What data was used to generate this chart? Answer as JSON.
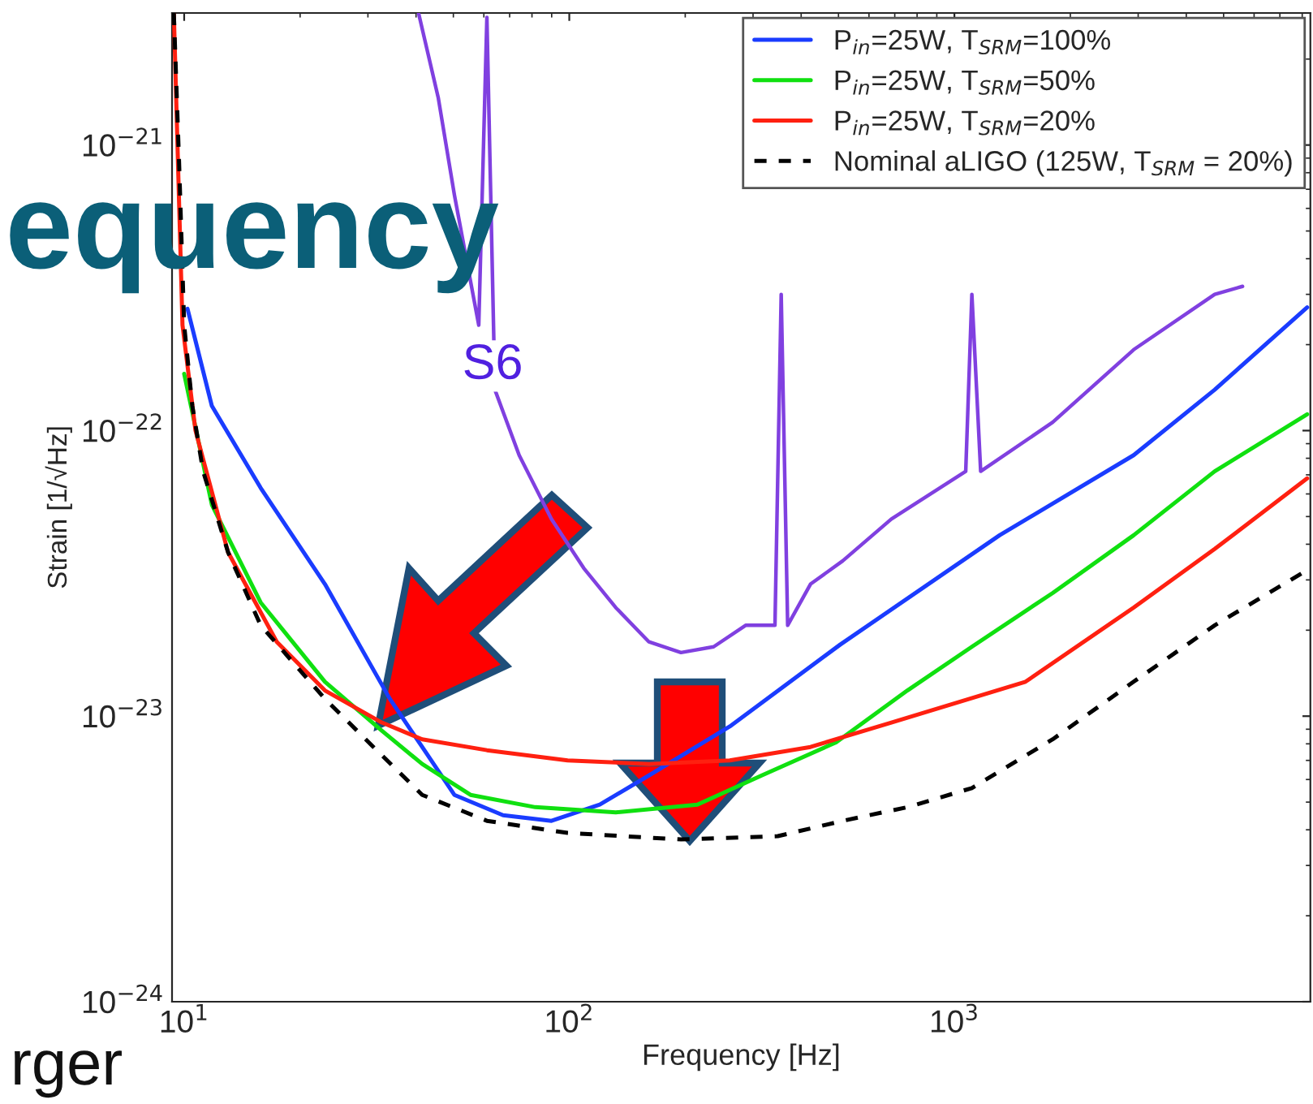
{
  "chart_data": {
    "type": "line",
    "xlabel": "Frequency [Hz]",
    "ylabel": "Strain [1/√Hz]",
    "log": "xy",
    "grid": false,
    "legend": "top right",
    "xlim": [
      9.3,
      8400
    ],
    "ylim": [
      1e-24,
      2.9e-21
    ],
    "xticks": [
      {
        "value": 10,
        "label": "10$^{1}$"
      },
      {
        "value": 100,
        "label": "10$^{2}$"
      },
      {
        "value": 1000,
        "label": "10$^{3}$"
      }
    ],
    "yticks": [
      {
        "value": 1e-24,
        "label": "10$^{−24}$"
      },
      {
        "value": 1e-23,
        "label": "10$^{−23}$"
      },
      {
        "value": 1e-22,
        "label": "10$^{−22}$"
      },
      {
        "value": 1e-21,
        "label": "10$^{−21}$"
      }
    ],
    "annotations": [
      "equency",
      "rger"
    ],
    "series": [
      {
        "name": "P$_{in}$=25W, T$_{SRM}$=100%",
        "color": "#1a3cff",
        "line_style": "solid",
        "x": [
          10.2,
          11.8,
          15.8,
          23.2,
          34.2,
          41.5,
          50.3,
          67.3,
          89.9,
          120,
          161,
          261,
          505,
          1310,
          2920,
          4740,
          8240
        ],
        "values": [
          2.67e-22,
          1.22e-22,
          6.3e-23,
          2.9e-23,
          1.15e-23,
          7.8e-24,
          5.3e-24,
          4.5e-24,
          4.3e-24,
          4.9e-24,
          6.2e-24,
          9.2e-24,
          1.78e-23,
          4.3e-23,
          8.2e-23,
          1.39e-22,
          2.7e-22
        ]
      },
      {
        "name": "P$_{in}$=25W, T$_{SRM}$=50%",
        "color": "#10e010",
        "line_style": "solid",
        "x": [
          10,
          11.8,
          15.8,
          23.2,
          32.6,
          41.5,
          55.4,
          81.6,
          132,
          215,
          316,
          493,
          755,
          1110,
          1800,
          2920,
          4740,
          8240
        ],
        "values": [
          1.58e-22,
          5.5e-23,
          2.5e-23,
          1.32e-23,
          8.9e-24,
          6.8e-24,
          5.3e-24,
          4.8e-24,
          4.6e-24,
          4.9e-24,
          6.2e-24,
          8.1e-24,
          1.23e-23,
          1.75e-23,
          2.7e-23,
          4.3e-23,
          7.2e-23,
          1.14e-22
        ]
      },
      {
        "name": "P$_{in}$=25W, T$_{SRM}$=20%",
        "color": "#ff2010",
        "line_style": "solid",
        "x": [
          9.4,
          9.9,
          10.7,
          13.0,
          17.4,
          23.2,
          32.6,
          41.5,
          61.1,
          99,
          161,
          261,
          423,
          686,
          1530,
          2920,
          4740,
          8240
        ],
        "values": [
          2.9e-21,
          2.34e-22,
          1e-22,
          3.75e-23,
          1.82e-23,
          1.23e-23,
          9.5e-24,
          8.3e-24,
          7.6e-24,
          7e-24,
          6.8e-24,
          7e-24,
          7.8e-24,
          9.5e-24,
          1.32e-23,
          2.4e-23,
          3.85e-23,
          6.8e-23
        ]
      },
      {
        "name": "Nominal aLIGO (125W, T$_{SRM}$ = 20%)",
        "color": "#000000",
        "line_style": "dashed",
        "x": [
          9.4,
          9.7,
          10,
          10.5,
          11.2,
          13.0,
          15.8,
          23.2,
          31.0,
          41.5,
          61.1,
          99,
          195,
          348,
          513,
          755,
          1110,
          1800,
          2920,
          4740,
          8090
        ],
        "values": [
          2.9e-21,
          8.7e-22,
          2.34e-22,
          1.22e-22,
          7.2e-23,
          3.75e-23,
          2.08e-23,
          1.15e-23,
          7.8e-24,
          5.3e-24,
          4.3e-24,
          3.9e-24,
          3.7e-24,
          3.8e-24,
          4.3e-24,
          4.8e-24,
          5.6e-24,
          8.3e-24,
          1.32e-23,
          2.08e-23,
          3.2e-23
        ]
      },
      {
        "name": "S6",
        "color": "#8040e0",
        "line_style": "solid",
        "x": [
          40.6,
          45.7,
          50.3,
          58.2,
          61.1,
          64.1,
          74.1,
          89.9,
          109,
          132,
          161,
          195,
          237,
          287,
          342,
          355,
          369,
          423,
          513,
          686,
          1070,
          1110,
          1170,
          1800,
          2920,
          4740,
          5600
        ],
        "values": [
          2.9e-21,
          1.46e-21,
          6.7e-22,
          2.34e-22,
          2.8e-21,
          1.39e-22,
          8.2e-23,
          4.9e-23,
          3.3e-23,
          2.4e-23,
          1.82e-23,
          1.67e-23,
          1.75e-23,
          2.08e-23,
          2.08e-23,
          3e-22,
          2.08e-23,
          2.9e-23,
          3.5e-23,
          4.9e-23,
          7.2e-23,
          3e-22,
          7.2e-23,
          1.07e-22,
          1.92e-22,
          3e-22,
          3.2e-22
        ]
      }
    ]
  }
}
